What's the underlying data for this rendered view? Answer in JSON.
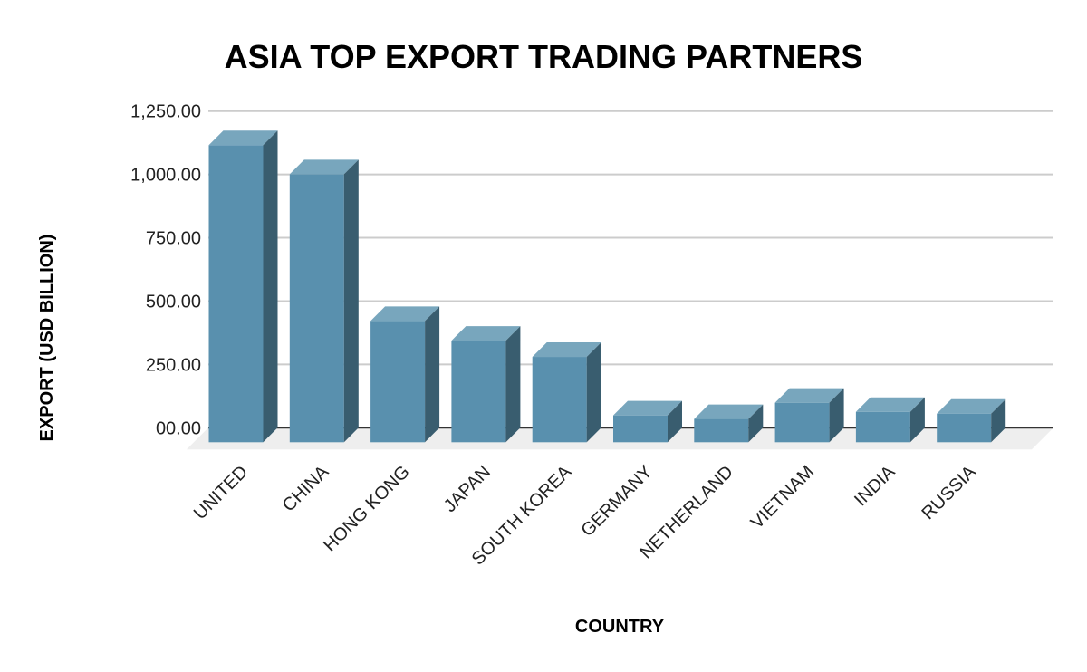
{
  "chart_data": {
    "type": "bar",
    "style": "3d-column",
    "title": "ASIA TOP EXPORT TRADING PARTNERS",
    "xlabel": "COUNTRY",
    "ylabel": "EXPORT (USD BILLION)",
    "categories": [
      "UNITED",
      "CHINA",
      "HONG KONG",
      "JAPAN",
      "SOUTH KOREA",
      "GERMANY",
      "NETHERLAND",
      "VIETNAM",
      "INDIA",
      "RUSSIA"
    ],
    "values": [
      1173,
      1058,
      479,
      401,
      337,
      106,
      92,
      156,
      120,
      113
    ],
    "ylim": [
      0,
      1250
    ],
    "yticks": [
      0,
      250,
      500,
      750,
      1000,
      1250
    ],
    "ytick_labels": [
      "00.00",
      "250.00",
      "500.00",
      "750.00",
      "1,000.00",
      "1,250.00"
    ],
    "grid": true,
    "legend": "none",
    "colors": {
      "front": "#5990ae",
      "top": "#78a6bd",
      "side": "#395d6f",
      "floor": "#eeeeee",
      "grid": "#cccccc",
      "baseline": "#333333"
    }
  }
}
